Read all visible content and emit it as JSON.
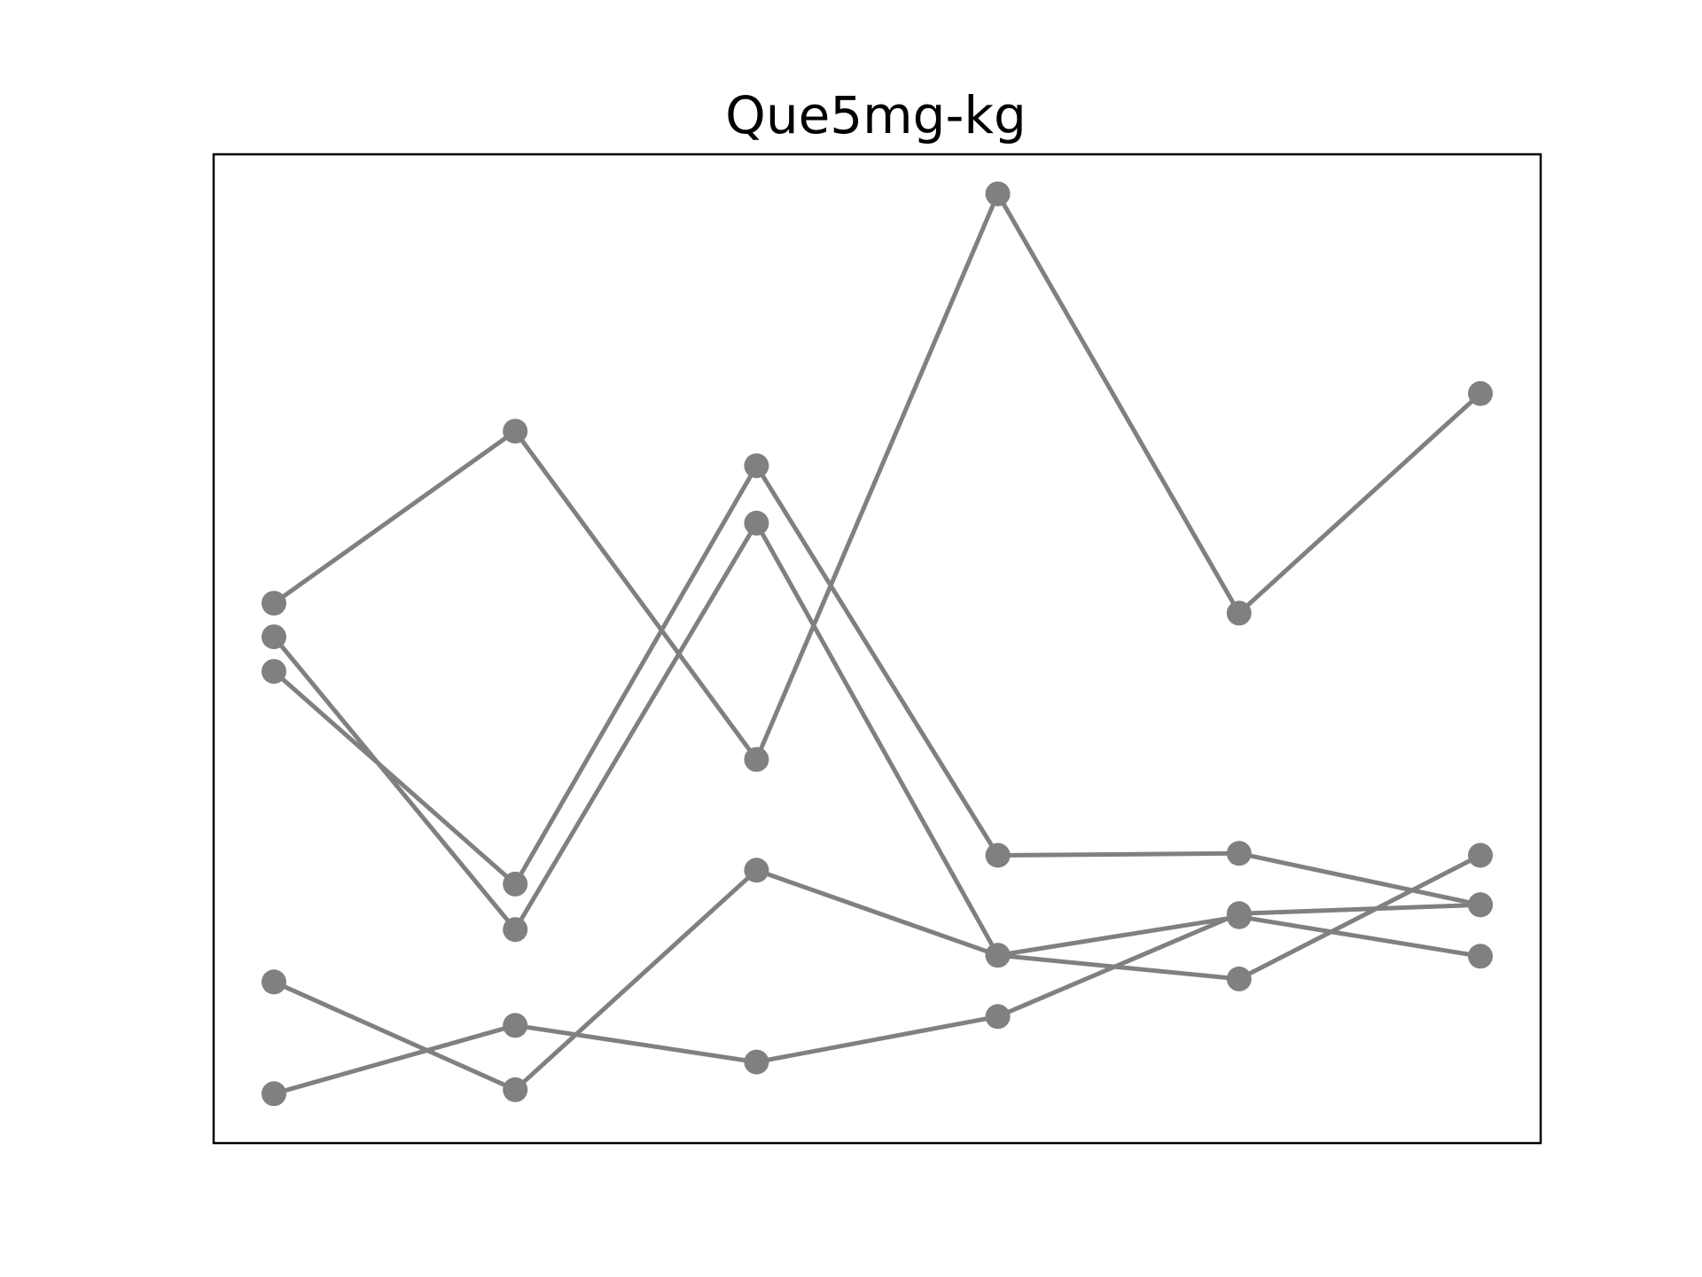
{
  "chart_data": {
    "type": "line",
    "title": "Que5mg-kg",
    "xlabel": "",
    "ylabel": "",
    "x": [
      1,
      2,
      3,
      4,
      5,
      6
    ],
    "xlim": [
      0.75,
      6.25
    ],
    "ylim": [
      0,
      100
    ],
    "grid": false,
    "axes_visible": false,
    "line_color": "#808080",
    "series": [
      {
        "values": [
          54.6,
          72.0,
          38.8,
          96.0,
          53.6,
          75.8
        ]
      },
      {
        "values": [
          47.7,
          26.2,
          68.5,
          29.1,
          29.3,
          24.1
        ]
      },
      {
        "values": [
          51.2,
          21.6,
          62.7,
          19.0,
          22.9,
          18.9
        ]
      },
      {
        "values": [
          16.3,
          5.4,
          27.6,
          19.0,
          16.6,
          29.1
        ]
      },
      {
        "values": [
          5.0,
          11.9,
          8.2,
          12.8,
          23.2,
          24.1
        ]
      }
    ]
  }
}
